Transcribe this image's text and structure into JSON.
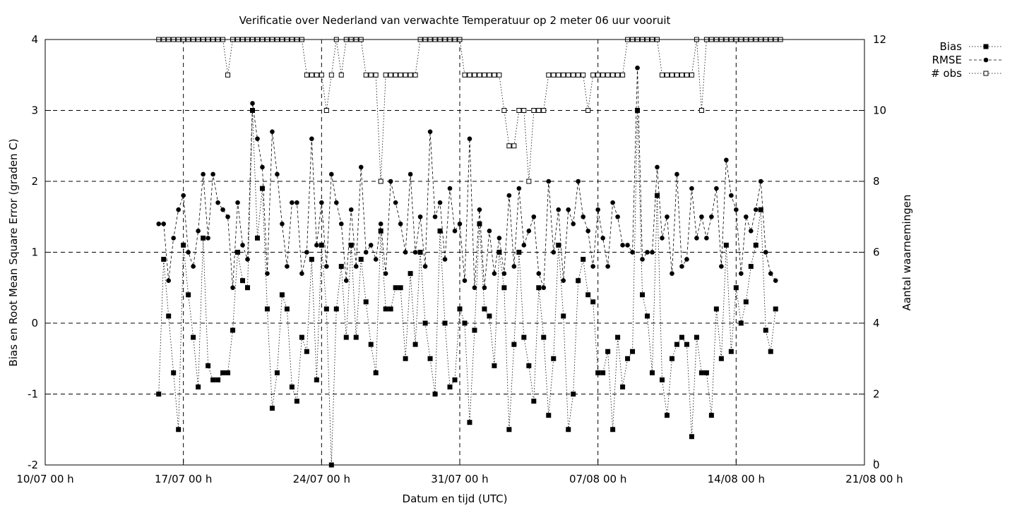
{
  "chart_data": {
    "type": "line",
    "title": "Verificatie over Nederland van verwachte Temperatuur op 2 meter 06 uur vooruit",
    "xlabel": "Datum en tijd (UTC)",
    "ylabel": "Bias en Root Mean Square Error (graden C)",
    "y2label": "Aantal waarnemingen",
    "xlim": [
      0,
      41.5
    ],
    "ylim": [
      -2,
      4
    ],
    "y2lim": [
      0,
      12
    ],
    "x_ticks": [
      0,
      7,
      14,
      21,
      28,
      35,
      42
    ],
    "x_tick_labels": [
      "10/07 00 h",
      "17/07 00 h",
      "24/07 00 h",
      "31/07 00 h",
      "07/08 00 h",
      "14/08 00 h",
      "21/08 00 h"
    ],
    "y_ticks": [
      -2,
      -1,
      0,
      1,
      2,
      3,
      4
    ],
    "y2_ticks": [
      0,
      2,
      4,
      6,
      8,
      10,
      12
    ],
    "grid": "dashed",
    "legend_position": "top-right outside",
    "x_start": 5.75,
    "x_step": 0.25,
    "series": [
      {
        "name": "Bias",
        "axis": "left",
        "values": [
          -1.0,
          0.9,
          0.1,
          -0.7,
          -1.5,
          1.1,
          0.4,
          -0.2,
          -0.9,
          1.2,
          -0.6,
          -0.8,
          -0.8,
          -0.7,
          -0.7,
          -0.1,
          1.0,
          0.6,
          0.5,
          3.0,
          1.2,
          1.9,
          0.2,
          -1.2,
          -0.7,
          0.4,
          0.2,
          -0.9,
          -1.1,
          -0.2,
          -0.4,
          0.9,
          -0.8,
          1.1,
          0.2,
          -2.0,
          0.2,
          0.8,
          -0.2,
          1.1,
          -0.2,
          0.9,
          0.3,
          -0.3,
          -0.7,
          1.3,
          0.2,
          0.2,
          0.5,
          0.5,
          -0.5,
          0.7,
          -0.3,
          1.0,
          0.0,
          -0.5,
          -1.0,
          1.3,
          0.0,
          -0.9,
          -0.8,
          0.2,
          0.0,
          -1.4,
          -0.1,
          1.4,
          0.2,
          0.1,
          -0.6,
          1.0,
          0.5,
          -1.5,
          -0.3,
          1.0,
          -0.2,
          -0.6,
          -1.1,
          0.5,
          -0.2,
          -1.3,
          -0.5,
          1.1,
          0.1,
          -1.5,
          -1.0,
          0.6,
          0.9,
          0.4,
          0.3,
          -0.7,
          -0.7,
          -0.4,
          -1.5,
          -0.2,
          -0.9,
          -0.5,
          -0.4,
          3.0,
          0.4,
          0.1,
          -0.7,
          1.8,
          -0.8,
          -1.3,
          -0.5,
          -0.3,
          -0.2,
          -0.3,
          -1.6,
          -0.2,
          -0.7,
          -0.7,
          -1.3,
          0.2,
          -0.5,
          1.1,
          -0.4,
          0.5,
          0.0,
          0.3,
          0.8,
          1.1,
          1.6,
          -0.1,
          -0.4,
          0.2
        ]
      },
      {
        "name": "RMSE",
        "axis": "left",
        "values": [
          1.4,
          1.4,
          0.6,
          1.2,
          1.6,
          1.8,
          1.0,
          0.8,
          1.3,
          2.1,
          1.2,
          2.1,
          1.7,
          1.6,
          1.5,
          0.5,
          1.7,
          1.1,
          0.9,
          3.1,
          2.6,
          2.2,
          0.7,
          2.7,
          2.1,
          1.4,
          0.8,
          1.7,
          1.7,
          0.7,
          1.0,
          2.6,
          1.1,
          1.7,
          0.8,
          2.1,
          1.7,
          1.4,
          0.6,
          1.6,
          0.8,
          2.2,
          1.0,
          1.1,
          0.9,
          1.4,
          0.7,
          2.0,
          1.7,
          1.4,
          1.0,
          2.1,
          1.0,
          1.5,
          0.8,
          2.7,
          1.5,
          1.7,
          0.9,
          1.9,
          1.3,
          1.4,
          0.6,
          2.6,
          0.5,
          1.6,
          0.5,
          1.3,
          0.7,
          1.2,
          0.7,
          1.8,
          0.8,
          1.9,
          1.1,
          1.3,
          1.5,
          0.7,
          0.5,
          2.0,
          1.0,
          1.6,
          0.6,
          1.6,
          1.4,
          2.0,
          1.5,
          1.3,
          0.8,
          1.6,
          1.2,
          0.8,
          1.7,
          1.5,
          1.1,
          1.1,
          1.0,
          3.6,
          0.9,
          1.0,
          1.0,
          2.2,
          1.2,
          1.5,
          0.7,
          2.1,
          0.8,
          0.9,
          1.9,
          1.2,
          1.5,
          1.2,
          1.5,
          1.9,
          0.8,
          2.3,
          1.8,
          1.6,
          0.7,
          1.5,
          1.3,
          1.6,
          2.0,
          1.0,
          0.7,
          0.6
        ]
      },
      {
        "name": "# obs",
        "axis": "right",
        "values": [
          12,
          12,
          12,
          12,
          12,
          12,
          12,
          12,
          12,
          12,
          12,
          12,
          12,
          12,
          11,
          12,
          12,
          12,
          12,
          12,
          12,
          12,
          12,
          12,
          12,
          12,
          12,
          12,
          12,
          12,
          11,
          11,
          11,
          11,
          10,
          11,
          12,
          11,
          12,
          12,
          12,
          12,
          11,
          11,
          11,
          8,
          11,
          11,
          11,
          11,
          11,
          11,
          11,
          12,
          12,
          12,
          12,
          12,
          12,
          12,
          12,
          12,
          11,
          11,
          11,
          11,
          11,
          11,
          11,
          11,
          10,
          9,
          9,
          10,
          10,
          8,
          10,
          10,
          10,
          11,
          11,
          11,
          11,
          11,
          11,
          11,
          11,
          10,
          11,
          11,
          11,
          11,
          11,
          11,
          11,
          12,
          12,
          12,
          12,
          12,
          12,
          12,
          11,
          11,
          11,
          11,
          11,
          11,
          11,
          12,
          10,
          12,
          12,
          12,
          12,
          12,
          12,
          12,
          12,
          12,
          12,
          12,
          12,
          12,
          12,
          12,
          12
        ]
      }
    ]
  }
}
